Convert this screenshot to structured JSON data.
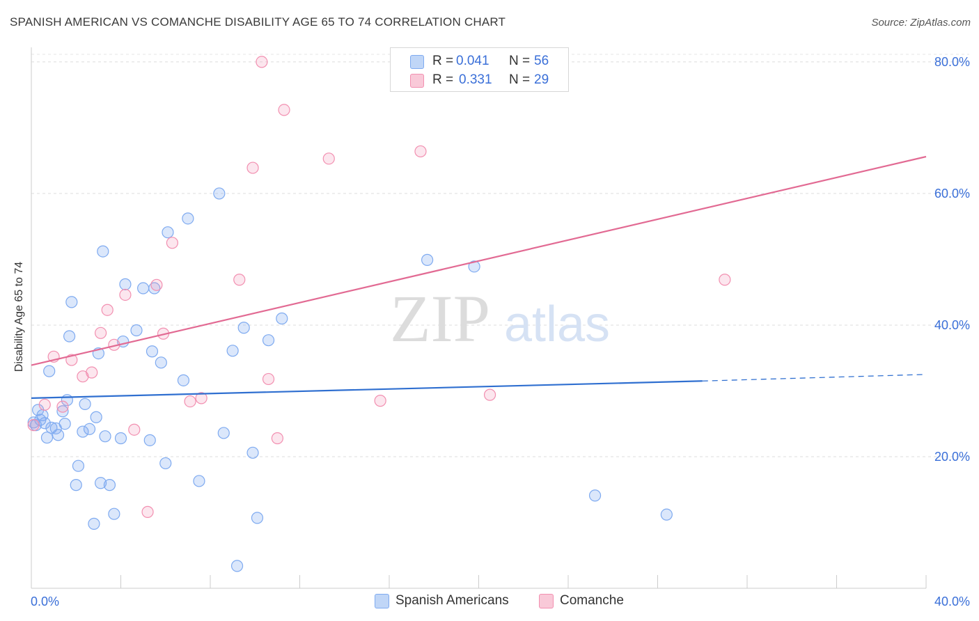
{
  "title": "SPANISH AMERICAN VS COMANCHE DISABILITY AGE 65 TO 74 CORRELATION CHART",
  "source": "Source: ZipAtlas.com",
  "watermark": {
    "zip": "ZIP",
    "atlas": "atlas"
  },
  "legend": {
    "r_label": "R =",
    "n_label": "N =",
    "rows": [
      {
        "r": "0.041",
        "n": "56",
        "color": "#7eaaf0"
      },
      {
        "r": "0.331",
        "n": "29",
        "color": "#f28fb0"
      }
    ]
  },
  "bottom_legend": [
    "Spanish Americans",
    "Comanche"
  ],
  "chart_data": {
    "type": "scatter",
    "title": "SPANISH AMERICAN VS COMANCHE DISABILITY AGE 65 TO 74 CORRELATION CHART",
    "xlabel": "",
    "ylabel": "Disability Age 65 to 74",
    "xlim": [
      0,
      40
    ],
    "ylim": [
      0,
      82
    ],
    "x_tick_labels": [
      "0.0%",
      "40.0%"
    ],
    "y_ticks": [
      20,
      40,
      60,
      80
    ],
    "y_tick_labels": [
      "20.0%",
      "40.0%",
      "60.0%",
      "80.0%"
    ],
    "grid": "horizontal dashed",
    "series": [
      {
        "name": "Spanish Americans",
        "color": "#7eaaf0",
        "line_color": "#2f6fd0",
        "trend": {
          "x": [
            0,
            30
          ],
          "y": [
            28.9,
            31.5
          ],
          "dashed_to": [
            40,
            32.5
          ]
        },
        "points": [
          [
            0.1,
            25.2
          ],
          [
            0.2,
            24.8
          ],
          [
            0.3,
            27.1
          ],
          [
            0.4,
            25.6
          ],
          [
            0.5,
            26.3
          ],
          [
            0.6,
            25.1
          ],
          [
            0.7,
            22.9
          ],
          [
            0.8,
            33.0
          ],
          [
            0.9,
            24.4
          ],
          [
            1.1,
            24.3
          ],
          [
            1.2,
            23.3
          ],
          [
            1.4,
            26.9
          ],
          [
            1.5,
            25.0
          ],
          [
            1.6,
            28.6
          ],
          [
            1.7,
            38.3
          ],
          [
            1.8,
            43.5
          ],
          [
            2.1,
            18.6
          ],
          [
            2.0,
            15.7
          ],
          [
            2.3,
            23.8
          ],
          [
            2.4,
            28.0
          ],
          [
            2.6,
            24.2
          ],
          [
            2.8,
            9.8
          ],
          [
            2.9,
            26.0
          ],
          [
            3.0,
            35.7
          ],
          [
            3.1,
            16.0
          ],
          [
            3.2,
            51.2
          ],
          [
            3.3,
            23.1
          ],
          [
            3.5,
            15.7
          ],
          [
            3.7,
            11.3
          ],
          [
            4.0,
            22.8
          ],
          [
            4.1,
            37.5
          ],
          [
            4.2,
            46.2
          ],
          [
            4.7,
            39.2
          ],
          [
            5.0,
            45.6
          ],
          [
            5.3,
            22.5
          ],
          [
            5.4,
            36.0
          ],
          [
            5.5,
            45.6
          ],
          [
            5.8,
            34.3
          ],
          [
            6.0,
            19.0
          ],
          [
            6.1,
            54.1
          ],
          [
            6.8,
            31.6
          ],
          [
            7.0,
            56.2
          ],
          [
            7.5,
            16.3
          ],
          [
            8.4,
            60.0
          ],
          [
            8.6,
            23.6
          ],
          [
            9.0,
            36.1
          ],
          [
            9.2,
            3.4
          ],
          [
            9.5,
            39.6
          ],
          [
            9.9,
            20.6
          ],
          [
            10.1,
            10.7
          ],
          [
            10.6,
            37.7
          ],
          [
            11.2,
            41.0
          ],
          [
            17.7,
            49.9
          ],
          [
            19.8,
            48.9
          ],
          [
            25.2,
            14.1
          ],
          [
            28.4,
            11.2
          ]
        ]
      },
      {
        "name": "Comanche",
        "color": "#f28fb0",
        "line_color": "#e26a93",
        "trend": {
          "x": [
            0,
            40
          ],
          "y": [
            33.9,
            65.6
          ]
        },
        "points": [
          [
            0.1,
            24.8
          ],
          [
            0.6,
            27.9
          ],
          [
            1.0,
            35.2
          ],
          [
            1.4,
            27.6
          ],
          [
            1.8,
            34.7
          ],
          [
            2.3,
            32.2
          ],
          [
            2.7,
            32.8
          ],
          [
            3.1,
            38.8
          ],
          [
            3.4,
            42.3
          ],
          [
            3.7,
            37.0
          ],
          [
            4.2,
            44.6
          ],
          [
            4.6,
            24.1
          ],
          [
            5.2,
            11.6
          ],
          [
            5.6,
            46.1
          ],
          [
            5.9,
            38.7
          ],
          [
            6.3,
            52.5
          ],
          [
            7.1,
            28.4
          ],
          [
            7.6,
            28.9
          ],
          [
            9.3,
            46.9
          ],
          [
            9.9,
            63.9
          ],
          [
            10.3,
            80.0
          ],
          [
            10.6,
            31.8
          ],
          [
            11.0,
            22.8
          ],
          [
            11.3,
            72.7
          ],
          [
            13.3,
            65.3
          ],
          [
            15.6,
            28.5
          ],
          [
            17.4,
            66.4
          ],
          [
            20.5,
            29.4
          ],
          [
            31.0,
            46.9
          ]
        ]
      }
    ]
  }
}
